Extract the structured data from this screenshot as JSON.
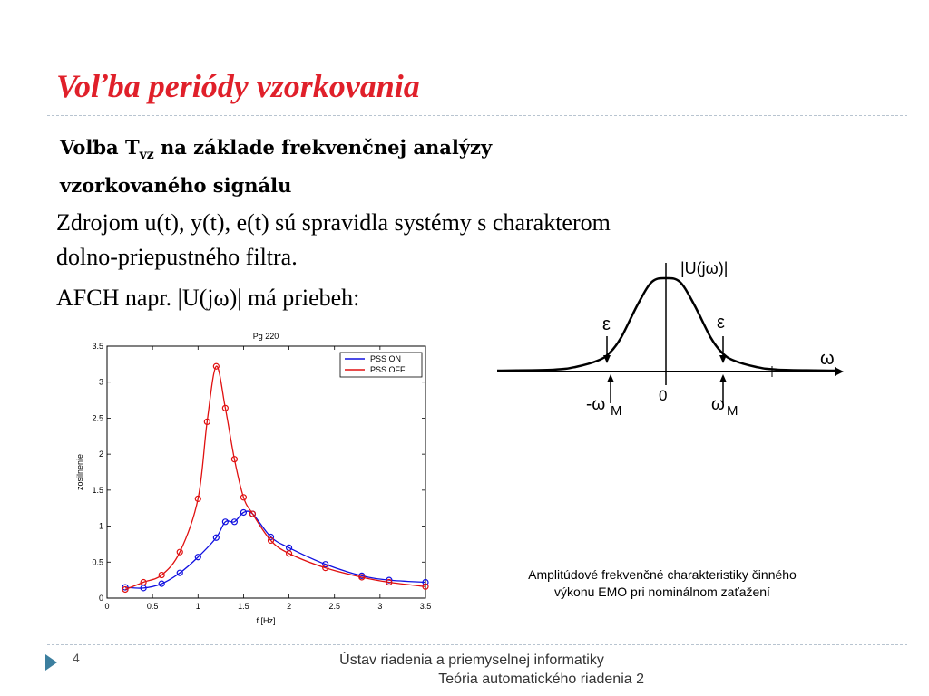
{
  "slide": {
    "title": "Voľba periódy vzorkovania",
    "subtitle_line1_pre": "Voľba T",
    "subtitle_sub": "vz",
    "subtitle_line1_post": " na základe frekvenčnej analýzy",
    "subtitle_line2": "vzorkovaného signálu",
    "para1_line1": "Zdrojom u(t), y(t), e(t) sú spravidla systémy s charakterom",
    "para1_line2": "dolno-priepustného filtra.",
    "para2": "AFCH napr. |U(jω)| má priebeh:",
    "caption_line1": "Amplitúdové frekvenčné charakteristiky činného",
    "caption_line2": "výkonu EMO pri nominálnom zaťažení",
    "page_number": "4",
    "footer_line1": "Ústav riadenia a priemyselnej informatiky",
    "footer_line2": "Teória automatického riadenia 2",
    "accent_color": "#e0202a",
    "footer_icon": "play-arrow-icon"
  },
  "chart_data": [
    {
      "type": "line",
      "title": "Pg 220",
      "xlabel": "f [Hz]",
      "ylabel": "zosilnenie",
      "xlim": [
        0,
        3.5
      ],
      "ylim": [
        0,
        3.5
      ],
      "xticks": [
        "0",
        "0.5",
        "1",
        "1.5",
        "2",
        "2.5",
        "3",
        "3.5"
      ],
      "yticks": [
        "0",
        "0.5",
        "1",
        "1.5",
        "2",
        "2.5",
        "3",
        "3.5"
      ],
      "grid": false,
      "legend": "top-right",
      "series": [
        {
          "name": "PSS ON",
          "color": "#1010e0",
          "x": [
            0.2,
            0.4,
            0.6,
            0.8,
            1.0,
            1.2,
            1.3,
            1.4,
            1.5,
            1.6,
            1.8,
            2.0,
            2.4,
            2.8,
            3.1,
            3.5
          ],
          "y": [
            0.15,
            0.14,
            0.2,
            0.35,
            0.57,
            0.84,
            1.06,
            1.06,
            1.19,
            1.17,
            0.85,
            0.7,
            0.47,
            0.31,
            0.25,
            0.22
          ]
        },
        {
          "name": "PSS OFF",
          "color": "#e01010",
          "x": [
            0.2,
            0.4,
            0.6,
            0.8,
            1.0,
            1.1,
            1.2,
            1.3,
            1.4,
            1.5,
            1.6,
            1.8,
            2.0,
            2.4,
            2.8,
            3.1,
            3.5
          ],
          "y": [
            0.12,
            0.22,
            0.32,
            0.64,
            1.38,
            2.45,
            3.22,
            2.64,
            1.93,
            1.4,
            1.17,
            0.8,
            0.62,
            0.42,
            0.29,
            0.22,
            0.16
          ]
        }
      ]
    },
    {
      "type": "line",
      "title": "",
      "ylabel": "|U(jω)|",
      "xlabel": "ω",
      "annotations": [
        "ε",
        "ε",
        "-ω",
        "M",
        "0",
        "ω",
        "M"
      ],
      "series": [
        {
          "x": [
            -3,
            -2,
            -1.6,
            -1.2,
            -1,
            -0.8,
            -0.5,
            -0.25,
            0,
            0.25,
            0.5,
            0.8,
            1,
            1.2,
            1.6,
            2,
            3
          ],
          "y": [
            0.01,
            0.02,
            0.05,
            0.12,
            0.2,
            0.36,
            0.72,
            0.96,
            1.0,
            0.96,
            0.72,
            0.36,
            0.2,
            0.12,
            0.05,
            0.02,
            0.01
          ]
        }
      ]
    }
  ]
}
